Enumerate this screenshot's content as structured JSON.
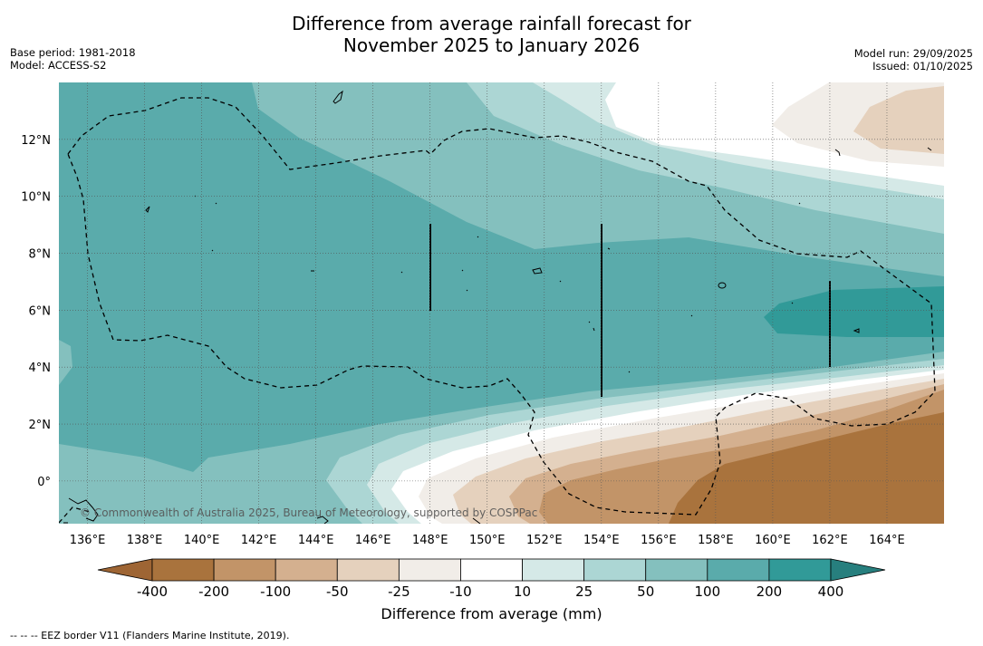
{
  "title": {
    "line1": "Difference from average rainfall forecast for",
    "line2": "November 2025 to January 2026"
  },
  "meta": {
    "base_period": "Base period: 1981-2018",
    "model": "Model: ACCESS-S2",
    "model_run": "Model run: 29/09/2025",
    "issued": "Issued: 01/10/2025"
  },
  "map": {
    "lon_range": [
      135,
      166
    ],
    "lat_range": [
      -1.5,
      14
    ],
    "lon_ticks": [
      "136°E",
      "138°E",
      "140°E",
      "142°E",
      "144°E",
      "146°E",
      "148°E",
      "150°E",
      "152°E",
      "154°E",
      "156°E",
      "158°E",
      "160°E",
      "162°E",
      "164°E"
    ],
    "lat_ticks": [
      "0°",
      "2°N",
      "4°N",
      "6°N",
      "8°N",
      "10°N",
      "12°N"
    ],
    "copyright": "© Commonwealth of Australia 2025, Bureau of Meteorology, supported by COSPPac"
  },
  "colorbar": {
    "labels": [
      "-400",
      "-200",
      "-100",
      "-50",
      "-25",
      "-10",
      "10",
      "25",
      "50",
      "100",
      "200",
      "400"
    ],
    "colors": [
      "#a9733d",
      "#c29468",
      "#d4b08f",
      "#e5d1bd",
      "#f1ede8",
      "#ffffff",
      "#d5e9e7",
      "#acd6d4",
      "#84c0be",
      "#5aabab",
      "#319a98"
    ],
    "under_color": "#9e6534",
    "over_color": "#277f7e",
    "title": "Difference from average (mm)"
  },
  "footnote": "--  --  -- EEZ border V11 (Flanders Marine Institute, 2019)."
}
